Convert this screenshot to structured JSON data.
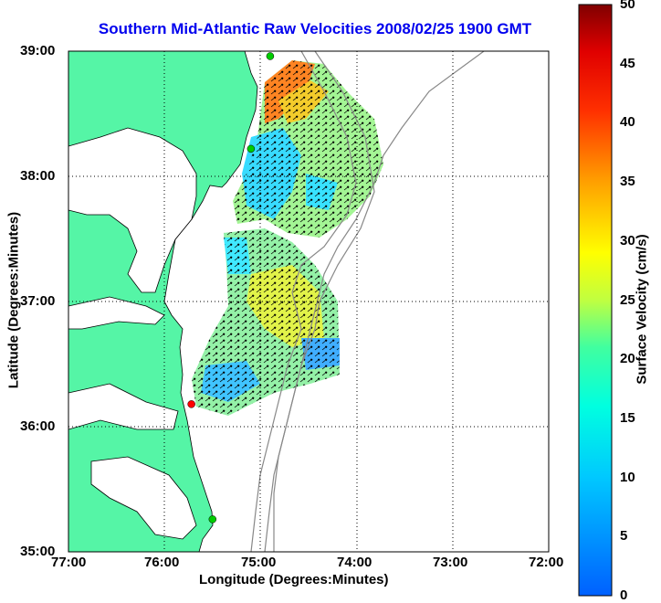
{
  "title": "Southern Mid-Atlantic Raw Velocities 2008/02/25 1900 GMT",
  "xlabel": "Longitude (Degrees:Minutes)",
  "ylabel": "Latitude (Degrees:Minutes)",
  "colorbar_label": "Surface Velocity (cm/s)",
  "x_ticks": [
    "77:00",
    "76:00",
    "75:00",
    "74:00",
    "73:00",
    "72:00"
  ],
  "y_ticks": [
    "39:00",
    "38:00",
    "37:00",
    "36:00",
    "35:00"
  ],
  "colorbar_ticks": [
    "0",
    "5",
    "10",
    "15",
    "20",
    "25",
    "30",
    "35",
    "40",
    "45",
    "50"
  ],
  "colors": {
    "land": "#55f5a6",
    "title": "#0000ee",
    "station_green": "#00cc00",
    "station_red": "#ff0000"
  },
  "chart_data": {
    "type": "heatmap",
    "xlim": [
      -77,
      -72
    ],
    "ylim": [
      35,
      39
    ],
    "colorbar_range": [
      0,
      50
    ],
    "grid": true,
    "stations": [
      {
        "lon": -74.9,
        "lat": 38.96,
        "color": "green"
      },
      {
        "lon": -75.1,
        "lat": 38.22,
        "color": "green"
      },
      {
        "lon": -75.72,
        "lat": 36.18,
        "color": "red"
      },
      {
        "lon": -75.5,
        "lat": 35.26,
        "color": "green"
      }
    ]
  }
}
